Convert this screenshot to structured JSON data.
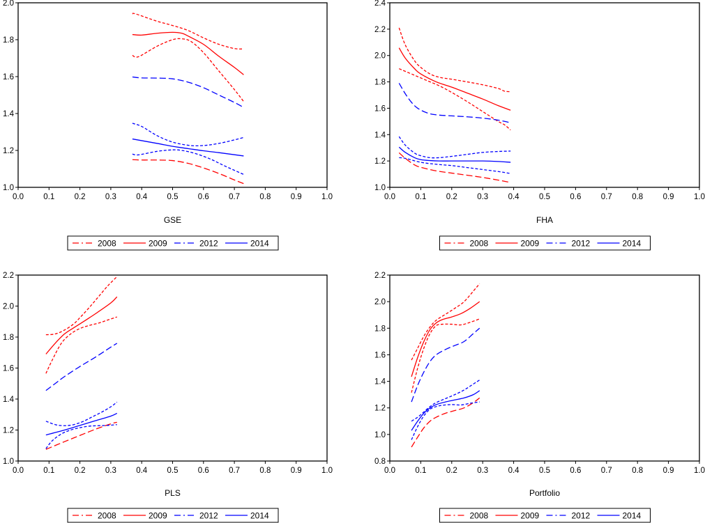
{
  "figure": {
    "legend_entries": [
      {
        "label": "2008",
        "color": "#ff0000",
        "style": "dash-dot"
      },
      {
        "label": "2009",
        "color": "#ff0000",
        "style": "solid"
      },
      {
        "label": "2012",
        "color": "#0000ff",
        "style": "dash-dot"
      },
      {
        "label": "2014",
        "color": "#0000ff",
        "style": "solid"
      }
    ]
  },
  "chart_data": [
    {
      "type": "line",
      "title": "",
      "xlabel": "GSE",
      "ylabel": "",
      "xlim": [
        0.0,
        1.0
      ],
      "ylim": [
        1.0,
        2.0
      ],
      "xticks": [
        "0.0",
        "0.1",
        "0.2",
        "0.3",
        "0.4",
        "0.5",
        "0.6",
        "0.7",
        "0.8",
        "0.9",
        "1.0"
      ],
      "yticks": [
        "1.0",
        "1.2",
        "1.4",
        "1.6",
        "1.8",
        "2.0"
      ],
      "grid": false,
      "legend": "bottom-center",
      "series": [
        {
          "name": "2008",
          "color": "#ff0000",
          "style": "longdash",
          "x": [
            0.37,
            0.4,
            0.45,
            0.5,
            0.55,
            0.6,
            0.65,
            0.7,
            0.73
          ],
          "y": [
            1.15,
            1.148,
            1.148,
            1.145,
            1.13,
            1.105,
            1.075,
            1.04,
            1.02
          ]
        },
        {
          "name": "2009",
          "color": "#ff0000",
          "style": "solid",
          "x": [
            0.37,
            0.4,
            0.45,
            0.5,
            0.53,
            0.55,
            0.6,
            0.65,
            0.7,
            0.73
          ],
          "y": [
            1.828,
            1.825,
            1.835,
            1.84,
            1.835,
            1.82,
            1.775,
            1.71,
            1.65,
            1.61
          ]
        },
        {
          "name": "2009 upper band",
          "color": "#ff0000",
          "style": "shortdash",
          "x": [
            0.37,
            0.38,
            0.45,
            0.5,
            0.55,
            0.6,
            0.65,
            0.7,
            0.73
          ],
          "y": [
            1.94,
            1.94,
            1.9,
            1.877,
            1.85,
            1.81,
            1.775,
            1.752,
            1.75
          ]
        },
        {
          "name": "2009 lower band",
          "color": "#ff0000",
          "style": "shortdash",
          "x": [
            0.37,
            0.39,
            0.45,
            0.5,
            0.53,
            0.56,
            0.6,
            0.65,
            0.7,
            0.73
          ],
          "y": [
            1.715,
            1.708,
            1.765,
            1.8,
            1.805,
            1.79,
            1.73,
            1.63,
            1.53,
            1.465
          ]
        },
        {
          "name": "2012",
          "color": "#0000ff",
          "style": "longdash",
          "x": [
            0.37,
            0.4,
            0.45,
            0.5,
            0.55,
            0.6,
            0.65,
            0.7,
            0.73
          ],
          "y": [
            1.598,
            1.593,
            1.592,
            1.588,
            1.57,
            1.54,
            1.5,
            1.46,
            1.433
          ]
        },
        {
          "name": "2012 upper band",
          "color": "#0000ff",
          "style": "shortdash",
          "x": [
            0.37,
            0.4,
            0.45,
            0.5,
            0.55,
            0.58,
            0.62,
            0.67,
            0.73
          ],
          "y": [
            1.347,
            1.33,
            1.28,
            1.245,
            1.228,
            1.225,
            1.23,
            1.245,
            1.27
          ]
        },
        {
          "name": "2012 lower band",
          "color": "#0000ff",
          "style": "shortdash",
          "x": [
            0.37,
            0.39,
            0.45,
            0.5,
            0.53,
            0.57,
            0.62,
            0.67,
            0.73
          ],
          "y": [
            1.18,
            1.176,
            1.195,
            1.203,
            1.2,
            1.185,
            1.155,
            1.115,
            1.07
          ]
        },
        {
          "name": "2014",
          "color": "#0000ff",
          "style": "solid",
          "x": [
            0.37,
            0.45,
            0.5,
            0.55,
            0.6,
            0.65,
            0.73
          ],
          "y": [
            1.262,
            1.238,
            1.222,
            1.21,
            1.198,
            1.188,
            1.17
          ]
        }
      ]
    },
    {
      "type": "line",
      "title": "",
      "xlabel": "FHA",
      "ylabel": "",
      "xlim": [
        0.0,
        1.0
      ],
      "ylim": [
        1.0,
        2.4
      ],
      "xticks": [
        "0.0",
        "0.1",
        "0.2",
        "0.3",
        "0.4",
        "0.5",
        "0.6",
        "0.7",
        "0.8",
        "0.9",
        "1.0"
      ],
      "yticks": [
        "1.0",
        "1.2",
        "1.4",
        "1.6",
        "1.8",
        "2.0",
        "2.2",
        "2.4"
      ],
      "grid": false,
      "legend": "bottom-center",
      "series": [
        {
          "name": "2008",
          "color": "#ff0000",
          "style": "longdash",
          "x": [
            0.03,
            0.05,
            0.08,
            0.1,
            0.15,
            0.2,
            0.25,
            0.3,
            0.35,
            0.39
          ],
          "y": [
            1.262,
            1.22,
            1.17,
            1.152,
            1.125,
            1.108,
            1.092,
            1.075,
            1.055,
            1.037
          ]
        },
        {
          "name": "2009",
          "color": "#ff0000",
          "style": "solid",
          "x": [
            0.03,
            0.05,
            0.08,
            0.1,
            0.15,
            0.2,
            0.25,
            0.3,
            0.35,
            0.39
          ],
          "y": [
            2.058,
            1.98,
            1.9,
            1.86,
            1.8,
            1.76,
            1.715,
            1.67,
            1.62,
            1.585
          ]
        },
        {
          "name": "2009 upper band",
          "color": "#ff0000",
          "style": "shortdash",
          "x": [
            0.03,
            0.05,
            0.08,
            0.1,
            0.13,
            0.16,
            0.2,
            0.25,
            0.3,
            0.35,
            0.37,
            0.39
          ],
          "y": [
            2.21,
            2.08,
            1.96,
            1.91,
            1.86,
            1.835,
            1.82,
            1.8,
            1.778,
            1.75,
            1.73,
            1.725
          ]
        },
        {
          "name": "2009 lower band",
          "color": "#ff0000",
          "style": "shortdash",
          "x": [
            0.03,
            0.08,
            0.12,
            0.16,
            0.2,
            0.25,
            0.3,
            0.35,
            0.37,
            0.39
          ],
          "y": [
            1.9,
            1.85,
            1.81,
            1.77,
            1.72,
            1.65,
            1.575,
            1.5,
            1.475,
            1.435
          ]
        },
        {
          "name": "2012",
          "color": "#0000ff",
          "style": "longdash",
          "x": [
            0.03,
            0.05,
            0.07,
            0.09,
            0.12,
            0.15,
            0.2,
            0.25,
            0.3,
            0.35,
            0.39
          ],
          "y": [
            1.79,
            1.71,
            1.645,
            1.6,
            1.565,
            1.55,
            1.542,
            1.535,
            1.525,
            1.51,
            1.49
          ]
        },
        {
          "name": "2012 upper band",
          "color": "#0000ff",
          "style": "shortdash",
          "x": [
            0.03,
            0.05,
            0.08,
            0.1,
            0.13,
            0.16,
            0.2,
            0.25,
            0.3,
            0.35,
            0.39
          ],
          "y": [
            1.385,
            1.32,
            1.26,
            1.24,
            1.225,
            1.225,
            1.235,
            1.25,
            1.265,
            1.272,
            1.275
          ]
        },
        {
          "name": "2012 lower band",
          "color": "#0000ff",
          "style": "shortdash",
          "x": [
            0.03,
            0.05,
            0.1,
            0.15,
            0.2,
            0.25,
            0.3,
            0.35,
            0.39
          ],
          "y": [
            1.225,
            1.22,
            1.19,
            1.175,
            1.165,
            1.15,
            1.135,
            1.12,
            1.105
          ]
        },
        {
          "name": "2014",
          "color": "#0000ff",
          "style": "solid",
          "x": [
            0.03,
            0.05,
            0.08,
            0.1,
            0.13,
            0.16,
            0.2,
            0.25,
            0.3,
            0.35,
            0.39
          ],
          "y": [
            1.305,
            1.265,
            1.225,
            1.21,
            1.203,
            1.2,
            1.2,
            1.2,
            1.2,
            1.196,
            1.19
          ]
        }
      ]
    },
    {
      "type": "line",
      "title": "",
      "xlabel": "PLS",
      "ylabel": "",
      "xlim": [
        0.0,
        1.0
      ],
      "ylim": [
        1.0,
        2.2
      ],
      "xticks": [
        "0.0",
        "0.1",
        "0.2",
        "0.3",
        "0.4",
        "0.5",
        "0.6",
        "0.7",
        "0.8",
        "0.9",
        "1.0"
      ],
      "yticks": [
        "1.0",
        "1.2",
        "1.4",
        "1.6",
        "1.8",
        "2.0",
        "2.2"
      ],
      "grid": false,
      "legend": "bottom-center",
      "series": [
        {
          "name": "2008",
          "color": "#ff0000",
          "style": "longdash",
          "x": [
            0.09,
            0.15,
            0.2,
            0.25,
            0.3,
            0.32
          ],
          "y": [
            1.075,
            1.125,
            1.165,
            1.205,
            1.24,
            1.25
          ]
        },
        {
          "name": "2009",
          "color": "#ff0000",
          "style": "solid",
          "x": [
            0.09,
            0.12,
            0.15,
            0.18,
            0.2,
            0.25,
            0.3,
            0.32
          ],
          "y": [
            1.69,
            1.76,
            1.82,
            1.86,
            1.885,
            1.95,
            2.02,
            2.06
          ]
        },
        {
          "name": "2009 upper band",
          "color": "#ff0000",
          "style": "shortdash",
          "x": [
            0.09,
            0.12,
            0.15,
            0.18,
            0.2,
            0.23,
            0.26,
            0.29,
            0.32
          ],
          "y": [
            1.815,
            1.82,
            1.845,
            1.885,
            1.925,
            1.99,
            2.06,
            2.13,
            2.19
          ]
        },
        {
          "name": "2009 lower band",
          "color": "#ff0000",
          "style": "shortdash",
          "x": [
            0.09,
            0.11,
            0.14,
            0.17,
            0.2,
            0.23,
            0.26,
            0.29,
            0.32
          ],
          "y": [
            1.565,
            1.65,
            1.76,
            1.82,
            1.855,
            1.875,
            1.89,
            1.91,
            1.93
          ]
        },
        {
          "name": "2012",
          "color": "#0000ff",
          "style": "longdash",
          "x": [
            0.09,
            0.12,
            0.15,
            0.2,
            0.25,
            0.3,
            0.32
          ],
          "y": [
            1.455,
            1.5,
            1.545,
            1.61,
            1.67,
            1.735,
            1.76
          ]
        },
        {
          "name": "2012 upper band",
          "color": "#0000ff",
          "style": "shortdash",
          "x": [
            0.09,
            0.12,
            0.15,
            0.18,
            0.21,
            0.24,
            0.27,
            0.3,
            0.32
          ],
          "y": [
            1.257,
            1.235,
            1.228,
            1.235,
            1.255,
            1.285,
            1.315,
            1.35,
            1.38
          ]
        },
        {
          "name": "2012 lower band",
          "color": "#0000ff",
          "style": "shortdash",
          "x": [
            0.09,
            0.11,
            0.14,
            0.17,
            0.2,
            0.23,
            0.26,
            0.29,
            0.32
          ],
          "y": [
            1.08,
            1.13,
            1.175,
            1.2,
            1.215,
            1.225,
            1.228,
            1.23,
            1.235
          ]
        },
        {
          "name": "2014",
          "color": "#0000ff",
          "style": "solid",
          "x": [
            0.09,
            0.15,
            0.2,
            0.25,
            0.3,
            0.32
          ],
          "y": [
            1.168,
            1.2,
            1.23,
            1.26,
            1.29,
            1.308
          ]
        }
      ]
    },
    {
      "type": "line",
      "title": "",
      "xlabel": "Portfolio",
      "ylabel": "",
      "xlim": [
        0.0,
        1.0
      ],
      "ylim": [
        0.8,
        2.2
      ],
      "xticks": [
        "0.0",
        "0.1",
        "0.2",
        "0.3",
        "0.4",
        "0.5",
        "0.6",
        "0.7",
        "0.8",
        "0.9",
        "1.0"
      ],
      "yticks": [
        "0.8",
        "1.0",
        "1.2",
        "1.4",
        "1.6",
        "1.8",
        "2.0",
        "2.2"
      ],
      "grid": false,
      "legend": "bottom-center",
      "series": [
        {
          "name": "2008",
          "color": "#ff0000",
          "style": "longdash",
          "x": [
            0.07,
            0.09,
            0.11,
            0.13,
            0.15,
            0.18,
            0.21,
            0.24,
            0.27,
            0.29
          ],
          "y": [
            0.905,
            0.98,
            1.05,
            1.1,
            1.13,
            1.16,
            1.18,
            1.2,
            1.24,
            1.275
          ]
        },
        {
          "name": "2009",
          "color": "#ff0000",
          "style": "solid",
          "x": [
            0.07,
            0.09,
            0.11,
            0.13,
            0.15,
            0.17,
            0.2,
            0.23,
            0.26,
            0.29
          ],
          "y": [
            1.435,
            1.58,
            1.7,
            1.79,
            1.84,
            1.865,
            1.885,
            1.91,
            1.95,
            2.0
          ]
        },
        {
          "name": "2009 upper band",
          "color": "#ff0000",
          "style": "shortdash",
          "x": [
            0.07,
            0.09,
            0.11,
            0.13,
            0.15,
            0.18,
            0.21,
            0.24,
            0.27,
            0.29
          ],
          "y": [
            1.56,
            1.65,
            1.74,
            1.81,
            1.86,
            1.905,
            1.95,
            2.0,
            2.08,
            2.135
          ]
        },
        {
          "name": "2009 lower band",
          "color": "#ff0000",
          "style": "shortdash",
          "x": [
            0.07,
            0.09,
            0.11,
            0.13,
            0.15,
            0.17,
            0.2,
            0.23,
            0.26,
            0.29
          ],
          "y": [
            1.315,
            1.5,
            1.65,
            1.76,
            1.82,
            1.83,
            1.83,
            1.825,
            1.845,
            1.87
          ]
        },
        {
          "name": "2012",
          "color": "#0000ff",
          "style": "longdash",
          "x": [
            0.07,
            0.09,
            0.11,
            0.13,
            0.15,
            0.18,
            0.21,
            0.24,
            0.27,
            0.29
          ],
          "y": [
            1.245,
            1.37,
            1.47,
            1.55,
            1.6,
            1.64,
            1.67,
            1.7,
            1.76,
            1.8
          ]
        },
        {
          "name": "2012 upper band",
          "color": "#0000ff",
          "style": "shortdash",
          "x": [
            0.07,
            0.09,
            0.11,
            0.13,
            0.15,
            0.18,
            0.21,
            0.24,
            0.27,
            0.29
          ],
          "y": [
            1.1,
            1.13,
            1.17,
            1.21,
            1.24,
            1.27,
            1.3,
            1.335,
            1.38,
            1.41
          ]
        },
        {
          "name": "2012 lower band",
          "color": "#0000ff",
          "style": "shortdash",
          "x": [
            0.07,
            0.09,
            0.11,
            0.13,
            0.15,
            0.17,
            0.2,
            0.23,
            0.26,
            0.29
          ],
          "y": [
            0.96,
            1.06,
            1.14,
            1.19,
            1.21,
            1.22,
            1.225,
            1.222,
            1.235,
            1.245
          ]
        },
        {
          "name": "2014",
          "color": "#0000ff",
          "style": "solid",
          "x": [
            0.07,
            0.09,
            0.11,
            0.13,
            0.15,
            0.18,
            0.21,
            0.24,
            0.27,
            0.29
          ],
          "y": [
            1.03,
            1.1,
            1.16,
            1.2,
            1.225,
            1.245,
            1.26,
            1.275,
            1.3,
            1.33
          ]
        }
      ]
    }
  ]
}
